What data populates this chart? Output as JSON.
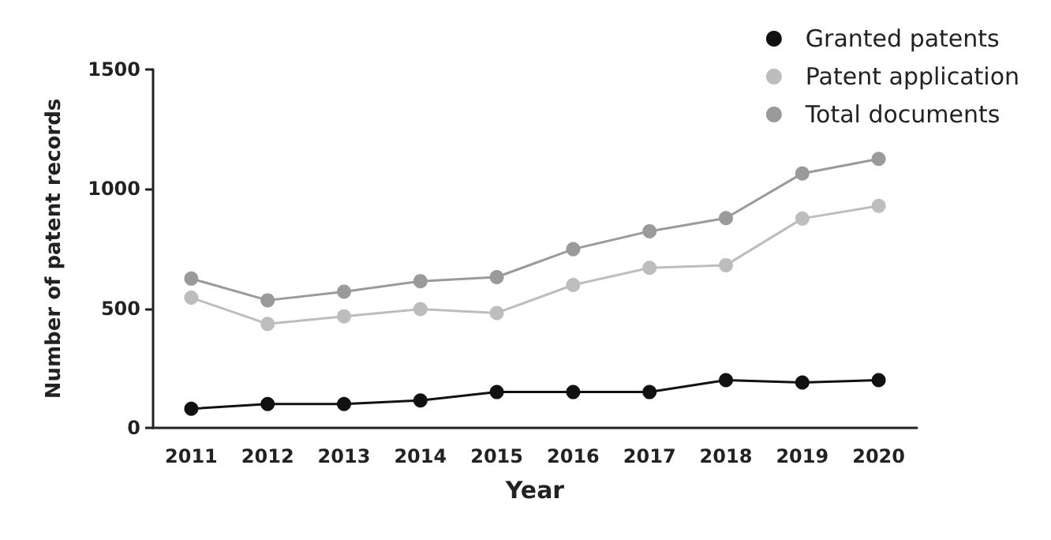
{
  "chart_data": {
    "type": "line",
    "xlabel": "Year",
    "ylabel": "Number of patent records",
    "categories": [
      "2011",
      "2012",
      "2013",
      "2014",
      "2015",
      "2016",
      "2017",
      "2018",
      "2019",
      "2020"
    ],
    "series": [
      {
        "name": "Granted patents",
        "color": "#111111",
        "values": [
          80,
          100,
          100,
          115,
          150,
          150,
          150,
          200,
          190,
          200
        ]
      },
      {
        "name": "Patent application",
        "color": "#bdbdbd",
        "values": [
          545,
          435,
          467,
          497,
          481,
          598,
          670,
          681,
          876,
          929
        ]
      },
      {
        "name": "Total documents",
        "color": "#9a9a9a",
        "values": [
          625,
          534,
          570,
          614,
          631,
          748,
          823,
          878,
          1065,
          1126
        ]
      }
    ],
    "ylim": [
      0,
      1500
    ],
    "yticks": [
      0,
      500,
      1000,
      1500
    ],
    "grid": false,
    "legend": "top right",
    "marker": "circle",
    "line_style": "solid"
  }
}
